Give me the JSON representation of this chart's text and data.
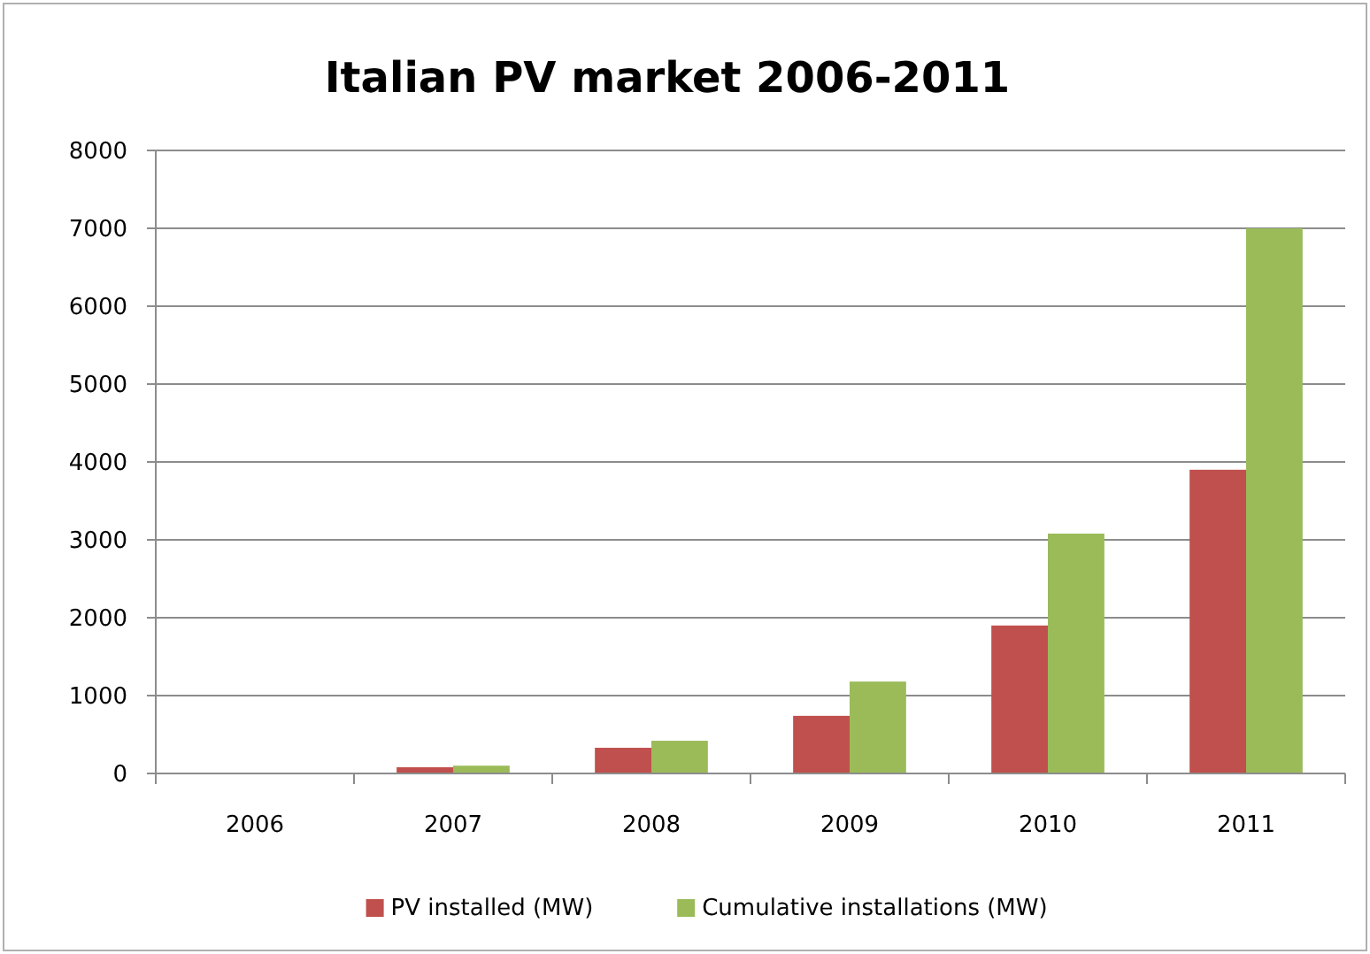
{
  "chart_data": {
    "type": "bar",
    "title": "Italian PV market 2006-2011",
    "categories": [
      "2006",
      "2007",
      "2008",
      "2009",
      "2010",
      "2011"
    ],
    "series": [
      {
        "name": "PV installed (MW)",
        "color": "#c0504d",
        "values": [
          0,
          80,
          330,
          740,
          1900,
          3900
        ]
      },
      {
        "name": "Cumulative installations (MW)",
        "color": "#9bbb59",
        "values": [
          0,
          100,
          420,
          1180,
          3080,
          7000
        ]
      }
    ],
    "ylim": [
      0,
      8000
    ],
    "yticks": [
      0,
      1000,
      2000,
      3000,
      4000,
      5000,
      6000,
      7000,
      8000
    ],
    "grid": "y",
    "legend": "bottom"
  }
}
